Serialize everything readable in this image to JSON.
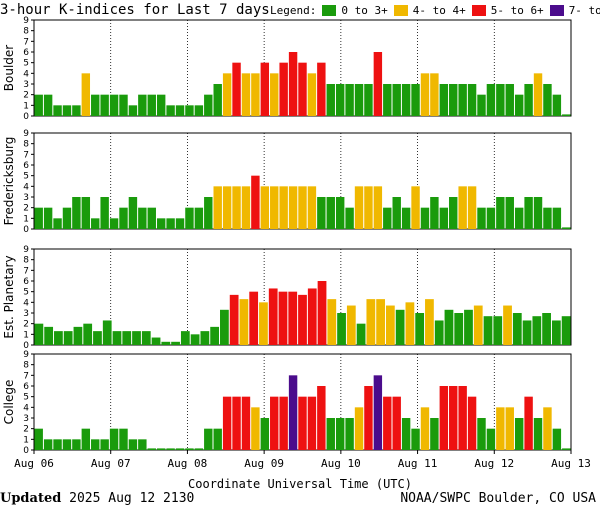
{
  "header": {
    "title": "3-hour K-indices for Last 7 days",
    "legend_label": "Legend:",
    "legend": [
      {
        "label": "0 to 3+",
        "color": "#1a9b0c"
      },
      {
        "label": "4- to 4+",
        "color": "#f0b800"
      },
      {
        "label": "5- to 6+",
        "color": "#ee1111"
      },
      {
        "label": "7- to 9",
        "color": "#4b0c8c"
      }
    ]
  },
  "footer": {
    "updated_label": "Updated",
    "updated_value": "2025 Aug 12 2130",
    "credit": "NOAA/SWPC Boulder, CO USA"
  },
  "chart_data": [
    {
      "type": "bar",
      "ylabel": "Boulder",
      "ylim": [
        0,
        9
      ],
      "yticks": [
        "0",
        "1",
        "2",
        "3",
        "4",
        "5",
        "6",
        "7",
        "8",
        "9"
      ],
      "values": [
        2,
        2,
        1,
        1,
        1,
        4,
        2,
        2,
        2,
        2,
        1,
        2,
        2,
        2,
        1,
        1,
        1,
        1,
        2,
        3,
        4,
        5,
        4,
        4,
        5,
        4,
        5,
        6,
        5,
        4,
        5,
        3,
        3,
        3,
        3,
        3,
        6,
        3,
        3,
        3,
        3,
        4,
        4,
        3,
        3,
        3,
        3,
        2,
        3,
        3,
        3,
        2,
        3,
        4,
        3,
        2,
        0.15
      ]
    },
    {
      "type": "bar",
      "ylabel": "Fredericksburg",
      "ylim": [
        0,
        9
      ],
      "yticks": [
        "0",
        "1",
        "2",
        "3",
        "4",
        "5",
        "6",
        "7",
        "8",
        "9"
      ],
      "values": [
        2,
        2,
        1,
        2,
        3,
        3,
        1,
        3,
        1,
        2,
        3,
        2,
        2,
        1,
        1,
        1,
        2,
        2,
        3,
        4,
        4,
        4,
        4,
        5,
        4,
        4,
        4,
        4,
        4,
        4,
        3,
        3,
        3,
        2,
        4,
        4,
        4,
        2,
        3,
        2,
        4,
        2,
        3,
        2,
        3,
        4,
        4,
        2,
        2,
        3,
        3,
        2,
        3,
        3,
        2,
        2,
        0.15
      ]
    },
    {
      "type": "bar",
      "ylabel": "Est. Planetary",
      "ylim": [
        0,
        9
      ],
      "yticks": [
        "0",
        "1",
        "2",
        "3",
        "4",
        "5",
        "6",
        "7",
        "8",
        "9"
      ],
      "values": [
        2,
        1.7,
        1.3,
        1.3,
        1.7,
        2,
        1.3,
        2.3,
        1.3,
        1.3,
        1.3,
        1.3,
        0.7,
        0.3,
        0.3,
        1.3,
        1,
        1.3,
        1.7,
        3.3,
        4.7,
        4.3,
        5,
        4,
        5.3,
        5,
        5,
        4.7,
        5.3,
        6,
        4.3,
        3,
        3.7,
        2,
        4.3,
        4.3,
        3.7,
        3.3,
        4,
        3,
        4.3,
        2.3,
        3.3,
        3,
        3.3,
        3.7,
        2.7,
        2.7,
        3.7,
        3,
        2.3,
        2.7,
        3,
        2.3,
        2.7
      ]
    },
    {
      "type": "bar",
      "ylabel": "College",
      "ylim": [
        0,
        9
      ],
      "yticks": [
        "0",
        "1",
        "2",
        "3",
        "4",
        "5",
        "6",
        "7",
        "8",
        "9"
      ],
      "values": [
        2,
        1,
        1,
        1,
        1,
        2,
        1,
        1,
        2,
        2,
        1,
        1,
        0.15,
        0.15,
        0.15,
        0.15,
        0.15,
        0.15,
        2,
        2,
        5,
        5,
        5,
        4,
        3,
        5,
        5,
        7,
        5,
        5,
        6,
        3,
        3,
        3,
        4,
        6,
        7,
        5,
        5,
        3,
        2,
        4,
        3,
        6,
        6,
        6,
        5,
        3,
        2,
        4,
        4,
        3,
        5,
        3,
        4,
        2,
        0.15
      ]
    }
  ],
  "x_axis": {
    "title": "Coordinate Universal Time (UTC)",
    "ticks": [
      "Aug 06",
      "Aug 07",
      "Aug 08",
      "Aug 09",
      "Aug 10",
      "Aug 11",
      "Aug 12",
      "Aug 13"
    ]
  }
}
